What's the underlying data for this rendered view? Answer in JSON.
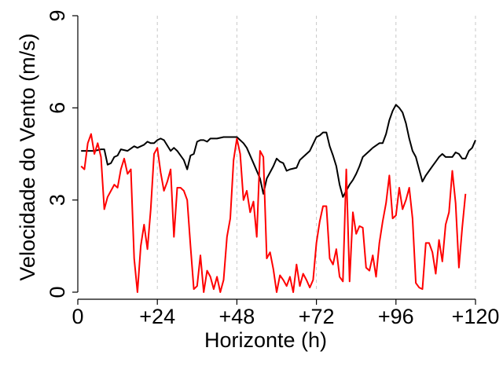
{
  "chart_data": {
    "type": "line",
    "xlabel": "Horizonte (h)",
    "ylabel": "Velocidade do Vento (m/s)",
    "xlim": [
      0,
      120
    ],
    "ylim": [
      0,
      9
    ],
    "x_ticks": [
      0,
      24,
      48,
      72,
      96,
      120
    ],
    "x_tick_labels": [
      "0",
      "+24",
      "+48",
      "+72",
      "+96",
      "+120"
    ],
    "y_ticks": [
      0,
      3,
      6,
      9
    ],
    "y_tick_labels": [
      "0",
      "3",
      "6",
      "9"
    ],
    "grid": "vertical dashed",
    "legend": "none",
    "series": [
      {
        "color": "#000000",
        "points": [
          [
            1,
            4.6
          ],
          [
            3,
            4.6
          ],
          [
            5,
            4.6
          ],
          [
            7,
            4.65
          ],
          [
            8,
            4.65
          ],
          [
            9,
            4.15
          ],
          [
            10,
            4.2
          ],
          [
            11,
            4.4
          ],
          [
            12,
            4.45
          ],
          [
            13,
            4.65
          ],
          [
            15,
            4.6
          ],
          [
            17,
            4.75
          ],
          [
            18,
            4.7
          ],
          [
            20,
            4.8
          ],
          [
            21,
            4.9
          ],
          [
            22,
            4.85
          ],
          [
            23,
            4.85
          ],
          [
            24,
            4.95
          ],
          [
            25,
            5.0
          ],
          [
            26,
            4.95
          ],
          [
            28,
            4.6
          ],
          [
            29,
            4.7
          ],
          [
            30,
            4.6
          ],
          [
            32,
            4.3
          ],
          [
            33,
            4.0
          ],
          [
            34,
            4.45
          ],
          [
            35,
            4.5
          ],
          [
            36,
            4.9
          ],
          [
            37,
            4.95
          ],
          [
            38,
            4.95
          ],
          [
            39,
            4.9
          ],
          [
            40,
            5.0
          ],
          [
            42,
            5.0
          ],
          [
            44,
            5.05
          ],
          [
            46,
            5.05
          ],
          [
            48,
            5.05
          ],
          [
            50,
            4.85
          ],
          [
            51,
            4.7
          ],
          [
            53,
            4.2
          ],
          [
            55,
            3.7
          ],
          [
            56,
            3.2
          ],
          [
            57,
            3.7
          ],
          [
            58,
            3.9
          ],
          [
            59,
            4.1
          ],
          [
            60,
            4.35
          ],
          [
            61,
            4.25
          ],
          [
            62,
            4.2
          ],
          [
            63,
            3.95
          ],
          [
            64,
            4.0
          ],
          [
            66,
            4.05
          ],
          [
            67,
            4.3
          ],
          [
            68,
            4.4
          ],
          [
            70,
            4.6
          ],
          [
            72,
            5.05
          ],
          [
            73,
            5.1
          ],
          [
            74,
            5.2
          ],
          [
            75,
            5.2
          ],
          [
            76,
            4.75
          ],
          [
            77,
            4.45
          ],
          [
            78,
            4.1
          ],
          [
            79,
            3.5
          ],
          [
            80,
            3.1
          ],
          [
            81,
            3.3
          ],
          [
            82,
            3.5
          ],
          [
            83,
            3.65
          ],
          [
            84,
            3.85
          ],
          [
            85,
            4.1
          ],
          [
            86,
            4.4
          ],
          [
            88,
            4.6
          ],
          [
            89,
            4.7
          ],
          [
            91,
            4.85
          ],
          [
            92,
            4.85
          ],
          [
            93,
            5.15
          ],
          [
            94,
            5.6
          ],
          [
            95,
            5.9
          ],
          [
            96,
            6.1
          ],
          [
            97,
            6.0
          ],
          [
            98,
            5.85
          ],
          [
            99,
            5.5
          ],
          [
            100,
            5.0
          ],
          [
            101,
            4.6
          ],
          [
            102,
            4.4
          ],
          [
            103,
            4.0
          ],
          [
            104,
            3.6
          ],
          [
            105,
            3.8
          ],
          [
            106,
            3.95
          ],
          [
            107,
            4.1
          ],
          [
            108,
            4.25
          ],
          [
            109,
            4.4
          ],
          [
            110,
            4.5
          ],
          [
            111,
            4.4
          ],
          [
            112,
            4.4
          ],
          [
            113,
            4.4
          ],
          [
            114,
            4.55
          ],
          [
            115,
            4.5
          ],
          [
            116,
            4.35
          ],
          [
            117,
            4.35
          ],
          [
            118,
            4.6
          ],
          [
            119,
            4.7
          ],
          [
            120,
            4.95
          ]
        ]
      },
      {
        "color": "#ff0000",
        "points": [
          [
            1,
            4.1
          ],
          [
            2,
            4.0
          ],
          [
            3,
            4.85
          ],
          [
            4,
            5.15
          ],
          [
            5,
            4.5
          ],
          [
            6,
            4.85
          ],
          [
            7,
            4.4
          ],
          [
            8,
            2.7
          ],
          [
            9,
            3.1
          ],
          [
            10,
            3.3
          ],
          [
            11,
            3.5
          ],
          [
            12,
            3.4
          ],
          [
            13,
            4.0
          ],
          [
            14,
            4.35
          ],
          [
            15,
            3.85
          ],
          [
            16,
            4.0
          ],
          [
            17,
            1.1
          ],
          [
            18,
            0.0
          ],
          [
            19,
            1.5
          ],
          [
            20,
            2.2
          ],
          [
            21,
            1.4
          ],
          [
            22,
            2.7
          ],
          [
            23,
            4.5
          ],
          [
            24,
            4.7
          ],
          [
            25,
            3.9
          ],
          [
            26,
            3.3
          ],
          [
            27,
            3.6
          ],
          [
            28,
            4.0
          ],
          [
            29,
            1.8
          ],
          [
            30,
            3.4
          ],
          [
            31,
            3.4
          ],
          [
            32,
            3.3
          ],
          [
            33,
            3.0
          ],
          [
            34,
            1.5
          ],
          [
            35,
            0.1
          ],
          [
            36,
            0.2
          ],
          [
            37,
            1.2
          ],
          [
            38,
            0.0
          ],
          [
            39,
            0.7
          ],
          [
            40,
            0.5
          ],
          [
            41,
            0.1
          ],
          [
            42,
            0.5
          ],
          [
            43,
            0.0
          ],
          [
            44,
            0.4
          ],
          [
            45,
            1.8
          ],
          [
            46,
            2.4
          ],
          [
            47,
            4.3
          ],
          [
            48,
            5.0
          ],
          [
            49,
            4.5
          ],
          [
            50,
            3.0
          ],
          [
            51,
            3.3
          ],
          [
            52,
            2.6
          ],
          [
            53,
            2.95
          ],
          [
            54,
            1.8
          ],
          [
            55,
            4.6
          ],
          [
            56,
            4.4
          ],
          [
            57,
            1.1
          ],
          [
            58,
            1.3
          ],
          [
            59,
            0.75
          ],
          [
            60,
            0.0
          ],
          [
            61,
            0.55
          ],
          [
            62,
            0.4
          ],
          [
            63,
            0.2
          ],
          [
            64,
            0.5
          ],
          [
            65,
            0.0
          ],
          [
            66,
            0.9
          ],
          [
            67,
            0.2
          ],
          [
            68,
            0.6
          ],
          [
            69,
            0.4
          ],
          [
            70,
            0.15
          ],
          [
            71,
            0.4
          ],
          [
            72,
            1.6
          ],
          [
            73,
            2.3
          ],
          [
            74,
            2.8
          ],
          [
            75,
            2.8
          ],
          [
            76,
            1.1
          ],
          [
            77,
            0.9
          ],
          [
            78,
            1.4
          ],
          [
            79,
            0.5
          ],
          [
            80,
            0.35
          ],
          [
            81,
            4.0
          ],
          [
            82,
            0.35
          ],
          [
            83,
            2.6
          ],
          [
            84,
            1.9
          ],
          [
            85,
            2.15
          ],
          [
            86,
            2.1
          ],
          [
            87,
            0.8
          ],
          [
            88,
            0.7
          ],
          [
            89,
            1.2
          ],
          [
            90,
            0.5
          ],
          [
            91,
            1.6
          ],
          [
            92,
            2.3
          ],
          [
            93,
            2.9
          ],
          [
            94,
            3.8
          ],
          [
            95,
            2.4
          ],
          [
            96,
            2.5
          ],
          [
            97,
            3.4
          ],
          [
            98,
            2.7
          ],
          [
            99,
            3.0
          ],
          [
            100,
            3.4
          ],
          [
            101,
            2.4
          ],
          [
            102,
            0.3
          ],
          [
            103,
            0.15
          ],
          [
            104,
            0.1
          ],
          [
            105,
            1.6
          ],
          [
            106,
            1.6
          ],
          [
            107,
            1.3
          ],
          [
            108,
            0.6
          ],
          [
            109,
            1.7
          ],
          [
            110,
            1.0
          ],
          [
            111,
            2.2
          ],
          [
            112,
            2.6
          ],
          [
            113,
            3.95
          ],
          [
            114,
            2.9
          ],
          [
            115,
            0.8
          ],
          [
            116,
            2.1
          ],
          [
            117,
            3.2
          ]
        ]
      }
    ]
  }
}
